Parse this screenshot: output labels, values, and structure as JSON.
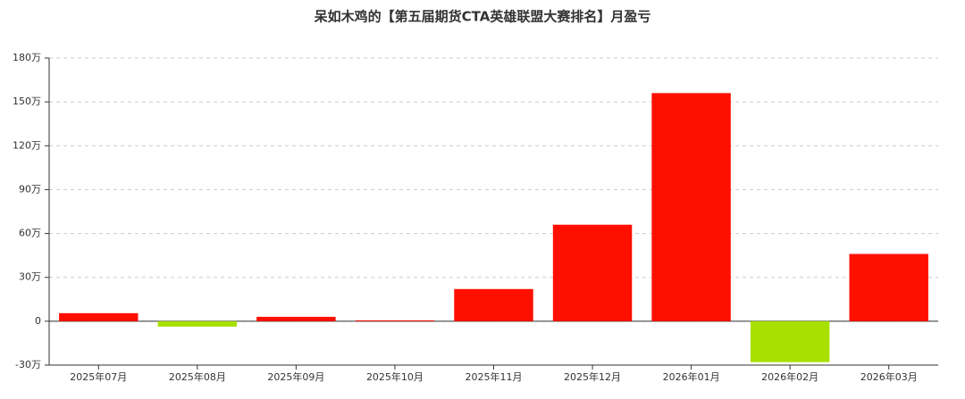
{
  "chart_data": {
    "type": "bar",
    "title": "呆如木鸡的【第五届期货CTA英雄联盟大赛排名】月盈亏",
    "categories": [
      "2025年07月",
      "2025年08月",
      "2025年09月",
      "2025年10月",
      "2025年11月",
      "2025年12月",
      "2026年01月",
      "2026年02月",
      "2026年03月"
    ],
    "values": [
      5.5,
      -3.7,
      3,
      0.6,
      22,
      66,
      156,
      -28,
      46
    ],
    "positive_color": "#ff0f00",
    "negative_color": "#a8e000",
    "ylim": [
      -30,
      180
    ],
    "yticks": [
      {
        "value": -30,
        "label": "-30万"
      },
      0,
      {
        "value": 30,
        "label": "30万"
      },
      {
        "value": 60,
        "label": "60万"
      },
      {
        "value": 90,
        "label": "90万"
      },
      {
        "value": 120,
        "label": "120万"
      },
      {
        "value": 150,
        "label": "150万"
      },
      {
        "value": 180,
        "label": "180万"
      }
    ],
    "grid": true
  }
}
